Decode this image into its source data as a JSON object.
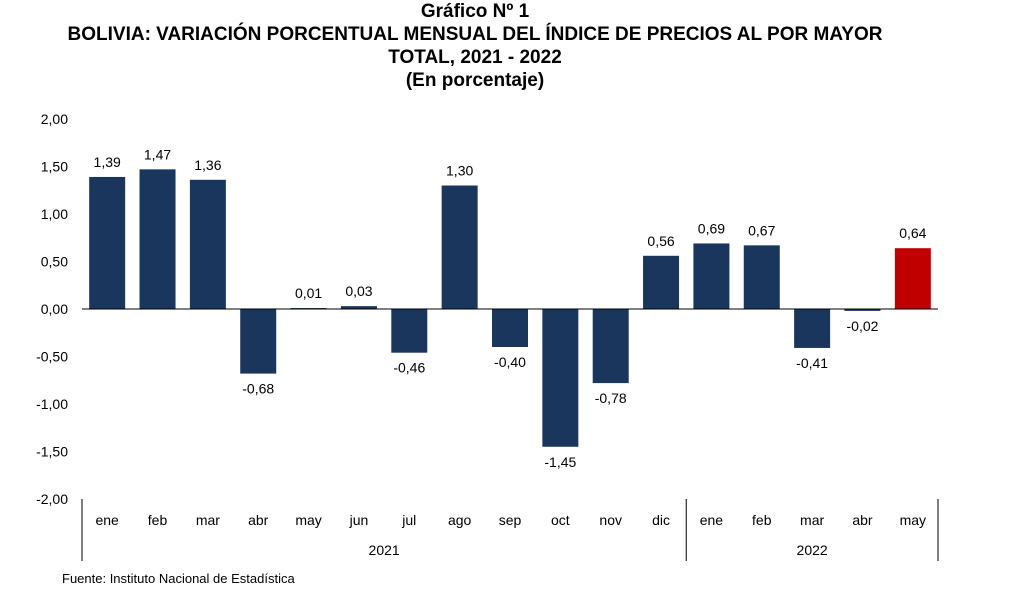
{
  "header": {
    "label": "Gráfico Nº 1",
    "title_line1": "BOLIVIA: VARIACIÓN PORCENTUAL MENSUAL DEL ÍNDICE DE PRECIOS AL POR MAYOR",
    "title_line2": "TOTAL, 2021 - 2022",
    "subtitle": "(En porcentaje)"
  },
  "source": "Fuente: Instituto Nacional de Estadística",
  "chart_data": {
    "type": "bar",
    "categories": [
      "ene",
      "feb",
      "mar",
      "abr",
      "may",
      "jun",
      "jul",
      "ago",
      "sep",
      "oct",
      "nov",
      "dic",
      "ene",
      "feb",
      "mar",
      "abr",
      "may"
    ],
    "years": [
      {
        "label": "2021",
        "count": 12
      },
      {
        "label": "2022",
        "count": 5
      }
    ],
    "values": [
      1.39,
      1.47,
      1.36,
      -0.68,
      0.01,
      0.03,
      -0.46,
      1.3,
      -0.4,
      -1.45,
      -0.78,
      0.56,
      0.69,
      0.67,
      -0.41,
      -0.02,
      0.64
    ],
    "value_labels": [
      "1,39",
      "1,47",
      "1,36",
      "-0,68",
      "0,01",
      "0,03",
      "-0,46",
      "1,30",
      "-0,40",
      "-1,45",
      "-0,78",
      "0,56",
      "0,69",
      "0,67",
      "-0,41",
      "-0,02",
      "0,64"
    ],
    "highlight_index": 16,
    "ylim": [
      -2.0,
      2.0
    ],
    "yticks": [
      2.0,
      1.5,
      1.0,
      0.5,
      0.0,
      -0.5,
      -1.0,
      -1.5,
      -2.0
    ],
    "ytick_labels": [
      "2,00",
      "1,50",
      "1,00",
      "0,50",
      "0,00",
      "-0,50",
      "-1,00",
      "-1,50",
      "-2,00"
    ],
    "grid": false,
    "colors": {
      "bar": "#1b365d",
      "highlight": "#c00000"
    }
  }
}
